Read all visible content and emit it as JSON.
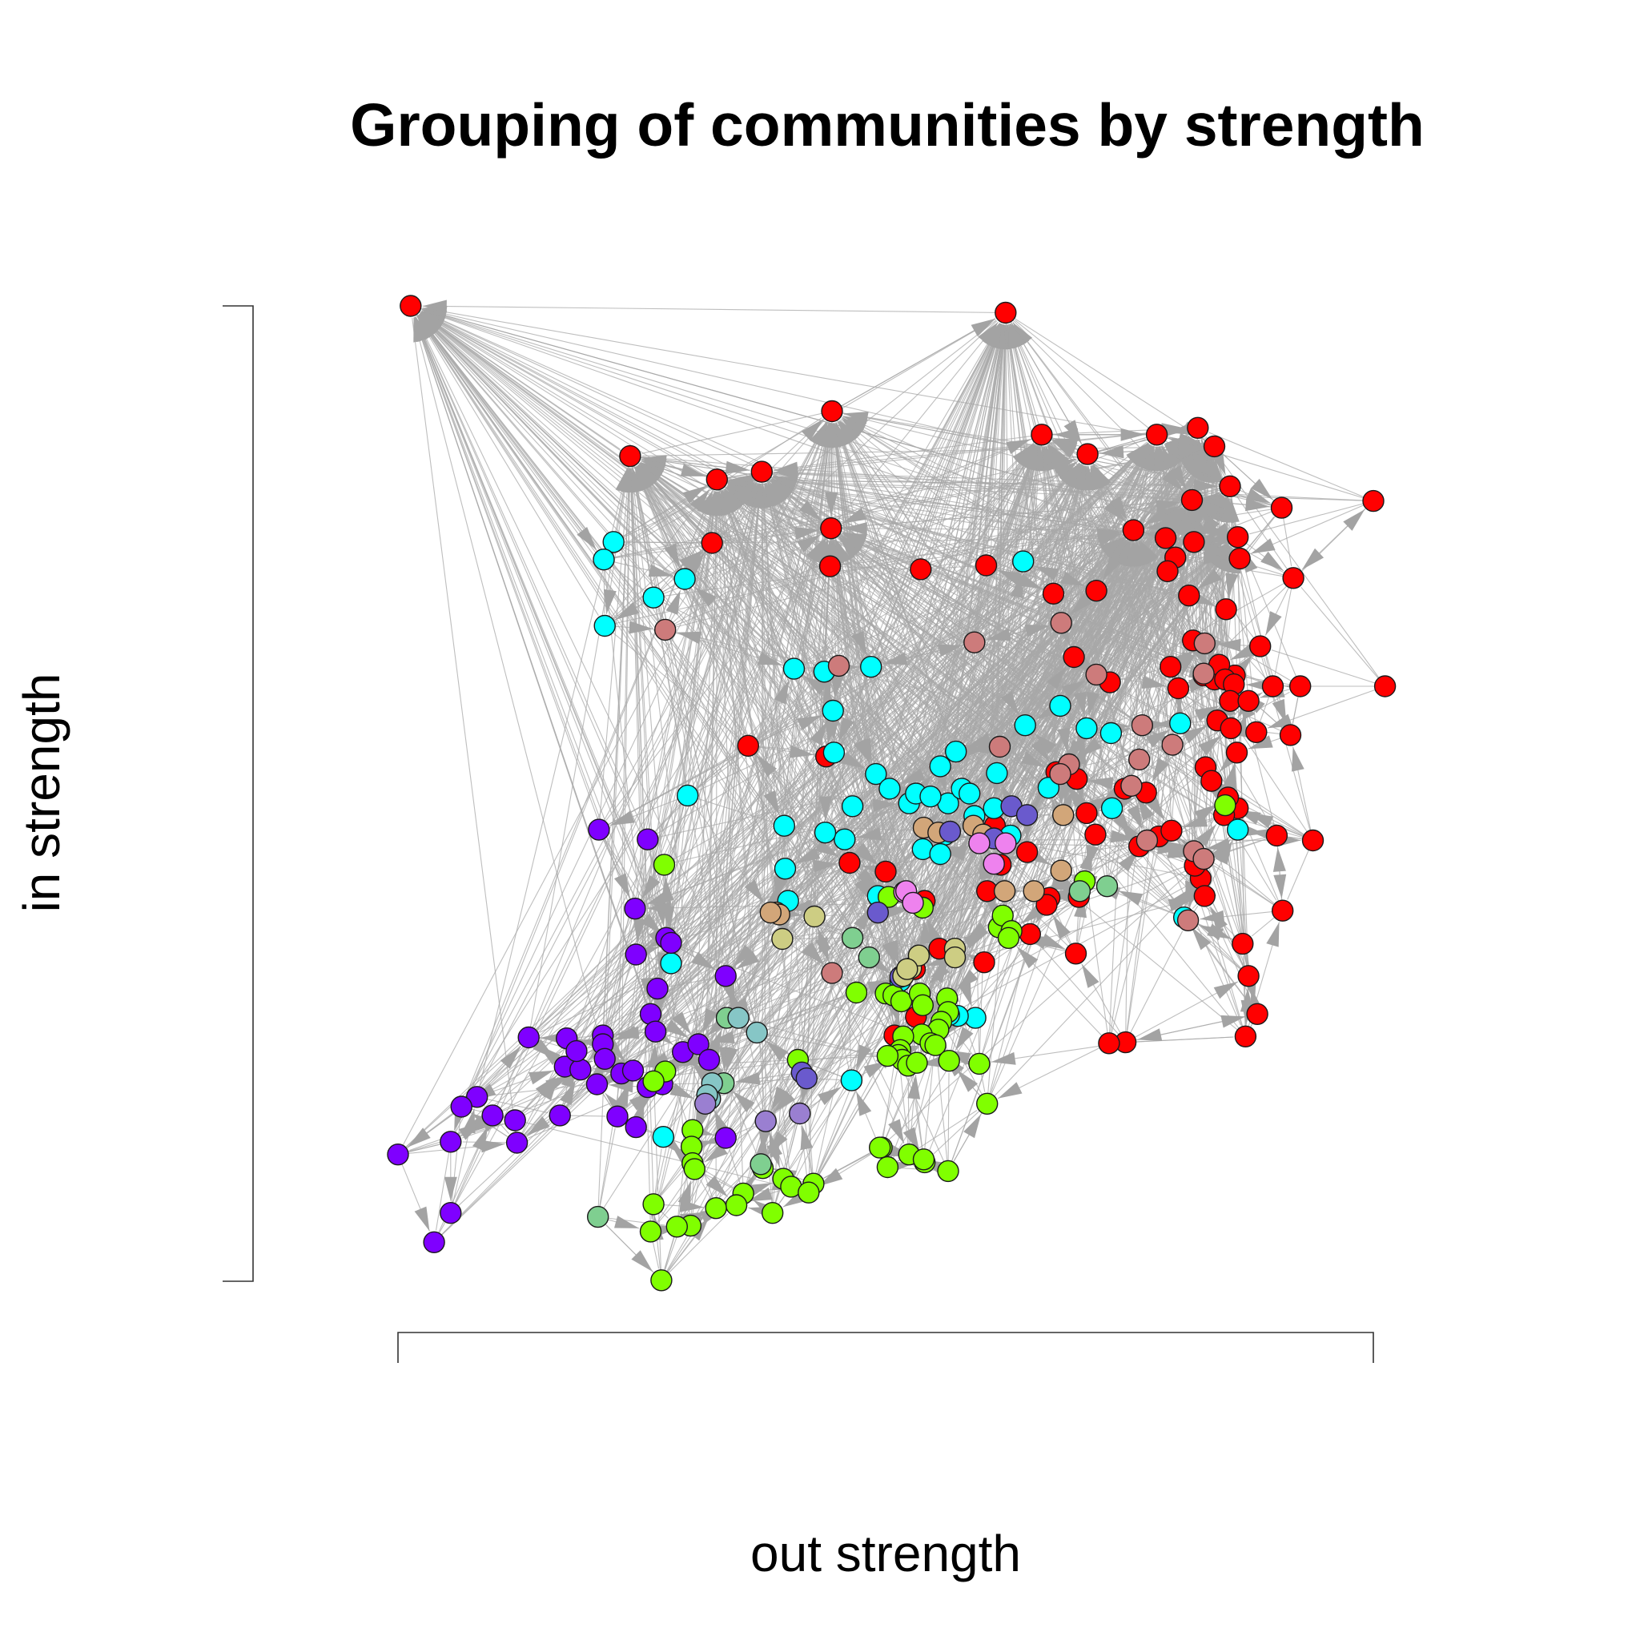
{
  "chart_data": {
    "type": "scatter",
    "title": "Grouping of communities by strength",
    "xlabel": "out strength",
    "ylabel": "in strength",
    "axes": "no tick labels shown",
    "grid": false,
    "legend": "none",
    "xlim": [
      0,
      1000
    ],
    "ylim": [
      0,
      1000
    ],
    "edge_color": "#a3a3a3",
    "node_outline_color": "#1a1a1a",
    "series": [
      {
        "color": "#ff0000",
        "points": [
          [
            13,
            1000
          ],
          [
            623,
            993
          ],
          [
            445,
            892
          ],
          [
            238,
            846
          ],
          [
            327,
            822
          ],
          [
            373,
            830
          ],
          [
            660,
            868
          ],
          [
            707,
            848
          ],
          [
            778,
            868
          ],
          [
            820,
            875
          ],
          [
            837,
            856
          ],
          [
            853,
            815
          ],
          [
            816,
            758
          ],
          [
            814,
            801
          ],
          [
            754,
            770
          ],
          [
            861,
            763
          ],
          [
            444,
            772
          ],
          [
            322,
            757
          ],
          [
            443,
            733
          ],
          [
            536,
            730
          ],
          [
            603,
            734
          ],
          [
            672,
            705
          ],
          [
            849,
            689
          ],
          [
            906,
            793
          ],
          [
            1000,
            800
          ],
          [
            863,
            741
          ],
          [
            787,
            762
          ],
          [
            918,
            721
          ],
          [
            797,
            742
          ],
          [
            789,
            728
          ],
          [
            884,
            651
          ],
          [
            815,
            657
          ],
          [
            826,
            621
          ],
          [
            837,
            617
          ],
          [
            858,
            621
          ],
          [
            842,
            632
          ],
          [
            811,
            703
          ],
          [
            716,
            708
          ],
          [
            693,
            640
          ],
          [
            730,
            614
          ],
          [
            792,
            630
          ],
          [
            848,
            617
          ],
          [
            857,
            612
          ],
          [
            853,
            595
          ],
          [
            872,
            595
          ],
          [
            897,
            610
          ],
          [
            925,
            610
          ],
          [
            915,
            560
          ],
          [
            1012,
            610
          ],
          [
            800,
            608
          ],
          [
            840,
            575
          ],
          [
            854,
            567
          ],
          [
            880,
            563
          ],
          [
            860,
            542
          ],
          [
            828,
            527
          ],
          [
            834,
            513
          ],
          [
            861,
            485
          ],
          [
            851,
            496
          ],
          [
            847,
            478
          ],
          [
            767,
            501
          ],
          [
            696,
            515
          ],
          [
            675,
            522
          ],
          [
            706,
            480
          ],
          [
            715,
            458
          ],
          [
            745,
            505
          ],
          [
            780,
            456
          ],
          [
            793,
            462
          ],
          [
            760,
            446
          ],
          [
            823,
            413
          ],
          [
            901,
            457
          ],
          [
            938,
            452
          ],
          [
            907,
            380
          ],
          [
            866,
            346
          ],
          [
            872,
            313
          ],
          [
            881,
            274
          ],
          [
            869,
            251
          ],
          [
            817,
            426
          ],
          [
            827,
            395
          ],
          [
            698,
            394
          ],
          [
            668,
            393
          ],
          [
            618,
            427
          ],
          [
            612,
            467
          ],
          [
            645,
            440
          ],
          [
            665,
            386
          ],
          [
            604,
            400
          ],
          [
            695,
            336
          ],
          [
            601,
            327
          ],
          [
            530,
            320
          ],
          [
            555,
            341
          ],
          [
            540,
            390
          ],
          [
            463,
            429
          ],
          [
            359,
            549
          ],
          [
            439,
            538
          ],
          [
            500,
            420
          ],
          [
            648,
            356
          ],
          [
            509,
            252
          ],
          [
            746,
            245
          ],
          [
            729,
            244
          ],
          [
            531,
            271
          ]
        ]
      },
      {
        "color": "#00ffff",
        "points": [
          [
            221,
            758
          ],
          [
            211,
            740
          ],
          [
            212,
            672
          ],
          [
            294,
            720
          ],
          [
            262,
            701
          ],
          [
            406,
            628
          ],
          [
            485,
            630
          ],
          [
            437,
            625
          ],
          [
            446,
            585
          ],
          [
            641,
            738
          ],
          [
            679,
            590
          ],
          [
            643,
            570
          ],
          [
            706,
            567
          ],
          [
            572,
            543
          ],
          [
            556,
            528
          ],
          [
            447,
            542
          ],
          [
            490,
            520
          ],
          [
            524,
            490
          ],
          [
            564,
            490
          ],
          [
            531,
            500
          ],
          [
            504,
            505
          ],
          [
            546,
            497
          ],
          [
            466,
            487
          ],
          [
            458,
            453
          ],
          [
            438,
            460
          ],
          [
            578,
            505
          ],
          [
            614,
            521
          ],
          [
            591,
            477
          ],
          [
            586,
            500
          ],
          [
            611,
            485
          ],
          [
            561,
            458
          ],
          [
            538,
            443
          ],
          [
            556,
            438
          ],
          [
            628,
            457
          ],
          [
            667,
            506
          ],
          [
            731,
            562
          ],
          [
            732,
            485
          ],
          [
            802,
            572
          ],
          [
            861,
            463
          ],
          [
            806,
            373
          ],
          [
            396,
            467
          ],
          [
            397,
            423
          ],
          [
            297,
            498
          ],
          [
            400,
            390
          ],
          [
            280,
            326
          ],
          [
            492,
            395
          ],
          [
            515,
            308
          ],
          [
            592,
            270
          ],
          [
            574,
            272
          ],
          [
            565,
            273
          ],
          [
            465,
            206
          ],
          [
            272,
            148
          ]
        ]
      },
      {
        "color": "#7f00ff",
        "points": [
          [
            206,
            463
          ],
          [
            256,
            453
          ],
          [
            243,
            382
          ],
          [
            275,
            352
          ],
          [
            280,
            347
          ],
          [
            244,
            335
          ],
          [
            336,
            313
          ],
          [
            266,
            300
          ],
          [
            259,
            274
          ],
          [
            264,
            256
          ],
          [
            210,
            252
          ],
          [
            173,
            249
          ],
          [
            171,
            220
          ],
          [
            187,
            217
          ],
          [
            183,
            236
          ],
          [
            210,
            243
          ],
          [
            212,
            228
          ],
          [
            229,
            213
          ],
          [
            241,
            216
          ],
          [
            204,
            202
          ],
          [
            256,
            199
          ],
          [
            271,
            202
          ],
          [
            292,
            235
          ],
          [
            308,
            243
          ],
          [
            319,
            227
          ],
          [
            225,
            169
          ],
          [
            134,
            250
          ],
          [
            81,
            189
          ],
          [
            65,
            179
          ],
          [
            97,
            170
          ],
          [
            120,
            165
          ],
          [
            166,
            170
          ],
          [
            122,
            142
          ],
          [
            54,
            143
          ],
          [
            244,
            158
          ],
          [
            336,
            147
          ],
          [
            0,
            130
          ],
          [
            54,
            70
          ],
          [
            37,
            40
          ]
        ]
      },
      {
        "color": "#80ff00",
        "points": [
          [
            273,
            427
          ],
          [
            848,
            488
          ],
          [
            503,
            394
          ],
          [
            538,
            383
          ],
          [
            616,
            363
          ],
          [
            704,
            410
          ],
          [
            620,
            375
          ],
          [
            629,
            359
          ],
          [
            626,
            352
          ],
          [
            470,
            296
          ],
          [
            500,
            295
          ],
          [
            508,
            293
          ],
          [
            516,
            287
          ],
          [
            535,
            295
          ],
          [
            538,
            283
          ],
          [
            563,
            290
          ],
          [
            564,
            276
          ],
          [
            557,
            266
          ],
          [
            554,
            258
          ],
          [
            537,
            253
          ],
          [
            518,
            251
          ],
          [
            515,
            237
          ],
          [
            513,
            232
          ],
          [
            517,
            227
          ],
          [
            523,
            221
          ],
          [
            532,
            224
          ],
          [
            546,
            244
          ],
          [
            551,
            242
          ],
          [
            565,
            226
          ],
          [
            596,
            223
          ],
          [
            604,
            182
          ],
          [
            502,
            231
          ],
          [
            410,
            227
          ],
          [
            274,
            215
          ],
          [
            262,
            205
          ],
          [
            302,
            155
          ],
          [
            301,
            138
          ],
          [
            302,
            121
          ],
          [
            304,
            115
          ],
          [
            496,
            137
          ],
          [
            494,
            137
          ],
          [
            524,
            130
          ],
          [
            502,
            117
          ],
          [
            540,
            122
          ],
          [
            539,
            125
          ],
          [
            564,
            113
          ],
          [
            374,
            116
          ],
          [
            395,
            105
          ],
          [
            426,
            100
          ],
          [
            403,
            97
          ],
          [
            421,
            91
          ],
          [
            354,
            90
          ],
          [
            347,
            78
          ],
          [
            326,
            75
          ],
          [
            262,
            79
          ],
          [
            384,
            70
          ],
          [
            300,
            57
          ],
          [
            270,
            1
          ],
          [
            286,
            56
          ],
          [
            259,
            51
          ]
        ]
      },
      {
        "color": "#cd7b7b",
        "points": [
          [
            274,
            668
          ],
          [
            452,
            631
          ],
          [
            591,
            655
          ],
          [
            680,
            675
          ],
          [
            716,
            622
          ],
          [
            617,
            548
          ],
          [
            763,
            570
          ],
          [
            826,
            623
          ],
          [
            827,
            654
          ],
          [
            760,
            535
          ],
          [
            752,
            508
          ],
          [
            794,
            550
          ],
          [
            688,
            530
          ],
          [
            679,
            520
          ],
          [
            768,
            452
          ],
          [
            816,
            441
          ],
          [
            826,
            433
          ],
          [
            810,
            370
          ],
          [
            445,
            316
          ]
        ]
      },
      {
        "color": "#d2a679",
        "points": [
          [
            539,
            465
          ],
          [
            590,
            467
          ],
          [
            554,
            460
          ],
          [
            600,
            458
          ],
          [
            682,
            478
          ],
          [
            680,
            421
          ],
          [
            652,
            400
          ],
          [
            622,
            400
          ],
          [
            388,
            378
          ],
          [
            391,
            376
          ],
          [
            382,
            378
          ]
        ]
      },
      {
        "color": "#6a5acd",
        "points": [
          [
            566,
            461
          ],
          [
            611,
            454
          ],
          [
            629,
            487
          ],
          [
            645,
            478
          ],
          [
            492,
            378
          ],
          [
            515,
            312
          ],
          [
            414,
            214
          ],
          [
            419,
            208
          ]
        ]
      },
      {
        "color": "#ee82ee",
        "points": [
          [
            596,
            449
          ],
          [
            623,
            449
          ],
          [
            519,
            399
          ],
          [
            521,
            400
          ],
          [
            528,
            388
          ],
          [
            611,
            428
          ]
        ]
      },
      {
        "color": "#cdcd83",
        "points": [
          [
            518,
            313
          ],
          [
            526,
            321
          ],
          [
            534,
            334
          ],
          [
            571,
            341
          ],
          [
            571,
            332
          ],
          [
            522,
            320
          ],
          [
            394,
            351
          ],
          [
            427,
            374
          ]
        ]
      },
      {
        "color": "#7fcf90",
        "points": [
          [
            483,
            332
          ],
          [
            466,
            352
          ],
          [
            699,
            400
          ],
          [
            727,
            405
          ],
          [
            337,
            270
          ],
          [
            334,
            203
          ],
          [
            372,
            120
          ],
          [
            205,
            66
          ]
        ]
      },
      {
        "color": "#86c6c6",
        "points": [
          [
            349,
            270
          ],
          [
            368,
            255
          ],
          [
            320,
            187
          ],
          [
            322,
            203
          ],
          [
            317,
            191
          ]
        ]
      },
      {
        "color": "#9a7fd1",
        "points": [
          [
            315,
            182
          ],
          [
            412,
            172
          ],
          [
            377,
            164
          ]
        ]
      }
    ]
  }
}
